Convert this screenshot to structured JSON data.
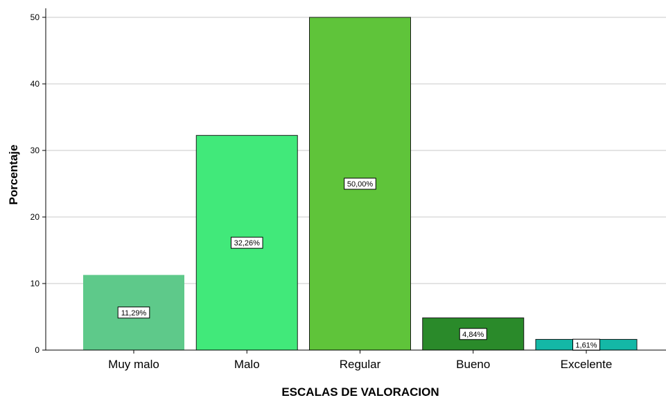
{
  "chart_data": {
    "type": "bar",
    "categories": [
      "Muy malo",
      "Malo",
      "Regular",
      "Bueno",
      "Excelente"
    ],
    "values": [
      11.29,
      32.26,
      50.0,
      4.84,
      1.61
    ],
    "data_labels": [
      "11,29%",
      "32,26%",
      "50,00%",
      "4,84%",
      "1,61%"
    ],
    "colors": [
      "#5ec98a",
      "#41e97a",
      "#5fc43a",
      "#2a8a2a",
      "#14b8a6"
    ],
    "xlabel": "ESCALAS DE VALORACION",
    "ylabel": "Porcentaje",
    "ylim": [
      0,
      50
    ],
    "yticks": [
      0,
      10,
      20,
      30,
      40,
      50
    ],
    "grid": true
  }
}
